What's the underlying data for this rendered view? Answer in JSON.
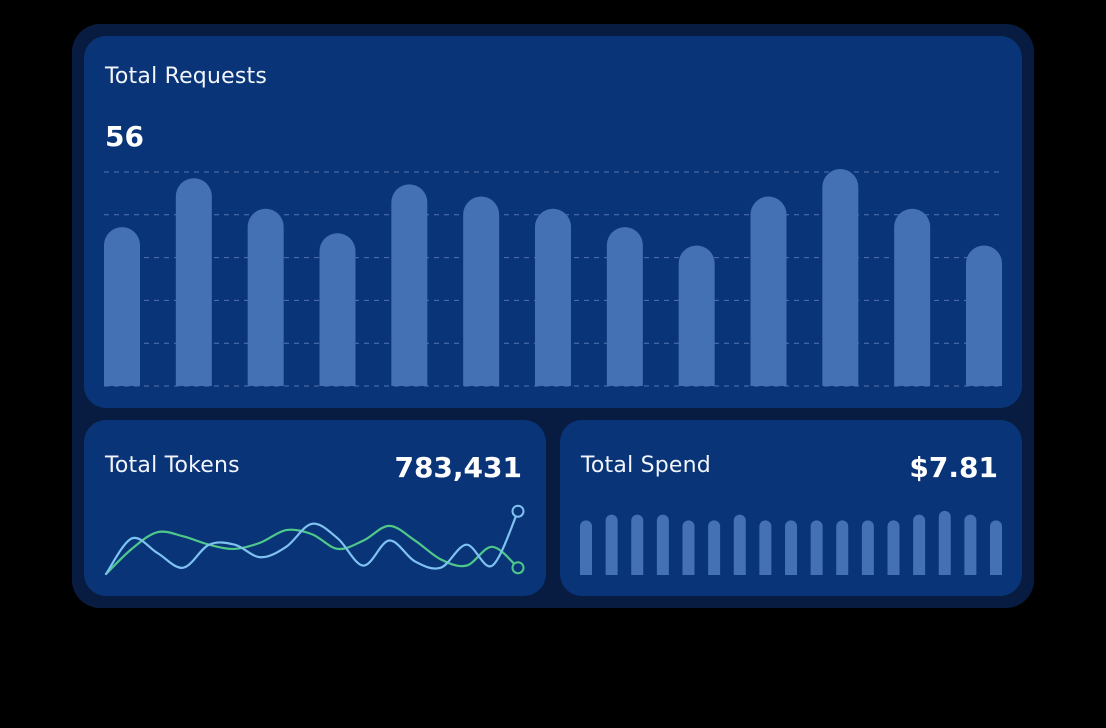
{
  "colors": {
    "page_bg": "#000000",
    "shell_bg": "#071c40",
    "card_bg": "#0a3478",
    "bar": "#4471b4",
    "grid": "#6f8fc7",
    "line_green": "#4fc98a",
    "line_blue": "#7ec2f2"
  },
  "requests": {
    "title": "Total Requests",
    "value": "56"
  },
  "tokens": {
    "title": "Total Tokens",
    "value": "783,431"
  },
  "spend": {
    "title": "Total Spend",
    "value": "$7.81"
  },
  "chart_data": [
    {
      "type": "bar",
      "id": "requests",
      "values": [
        52,
        68,
        58,
        50,
        66,
        62,
        58,
        52,
        46,
        62,
        71,
        58,
        46
      ],
      "ylim": [
        0,
        72
      ],
      "grid": true
    },
    {
      "type": "line",
      "id": "tokens",
      "x": [
        0,
        1,
        2,
        3,
        4,
        5,
        6,
        7,
        8,
        9,
        10,
        11,
        12,
        13,
        14,
        15,
        16
      ],
      "series": [
        {
          "values": [
            0,
            2.4,
            4.0,
            3.6,
            2.8,
            2.4,
            3.0,
            4.2,
            3.8,
            2.4,
            3.2,
            4.6,
            3.2,
            1.4,
            0.8,
            2.6,
            0.6
          ]
        },
        {
          "values": [
            0,
            3.4,
            2.0,
            0.6,
            2.8,
            2.8,
            1.6,
            2.6,
            4.8,
            3.4,
            0.8,
            3.2,
            1.2,
            0.6,
            2.8,
            0.8,
            6.0
          ]
        }
      ],
      "ylim": [
        0,
        6.5
      ]
    },
    {
      "type": "bar",
      "id": "spend",
      "values": [
        58,
        64,
        64,
        64,
        58,
        58,
        64,
        58,
        58,
        58,
        58,
        58,
        58,
        64,
        68,
        64,
        58
      ],
      "ylim": [
        0,
        70
      ]
    }
  ]
}
